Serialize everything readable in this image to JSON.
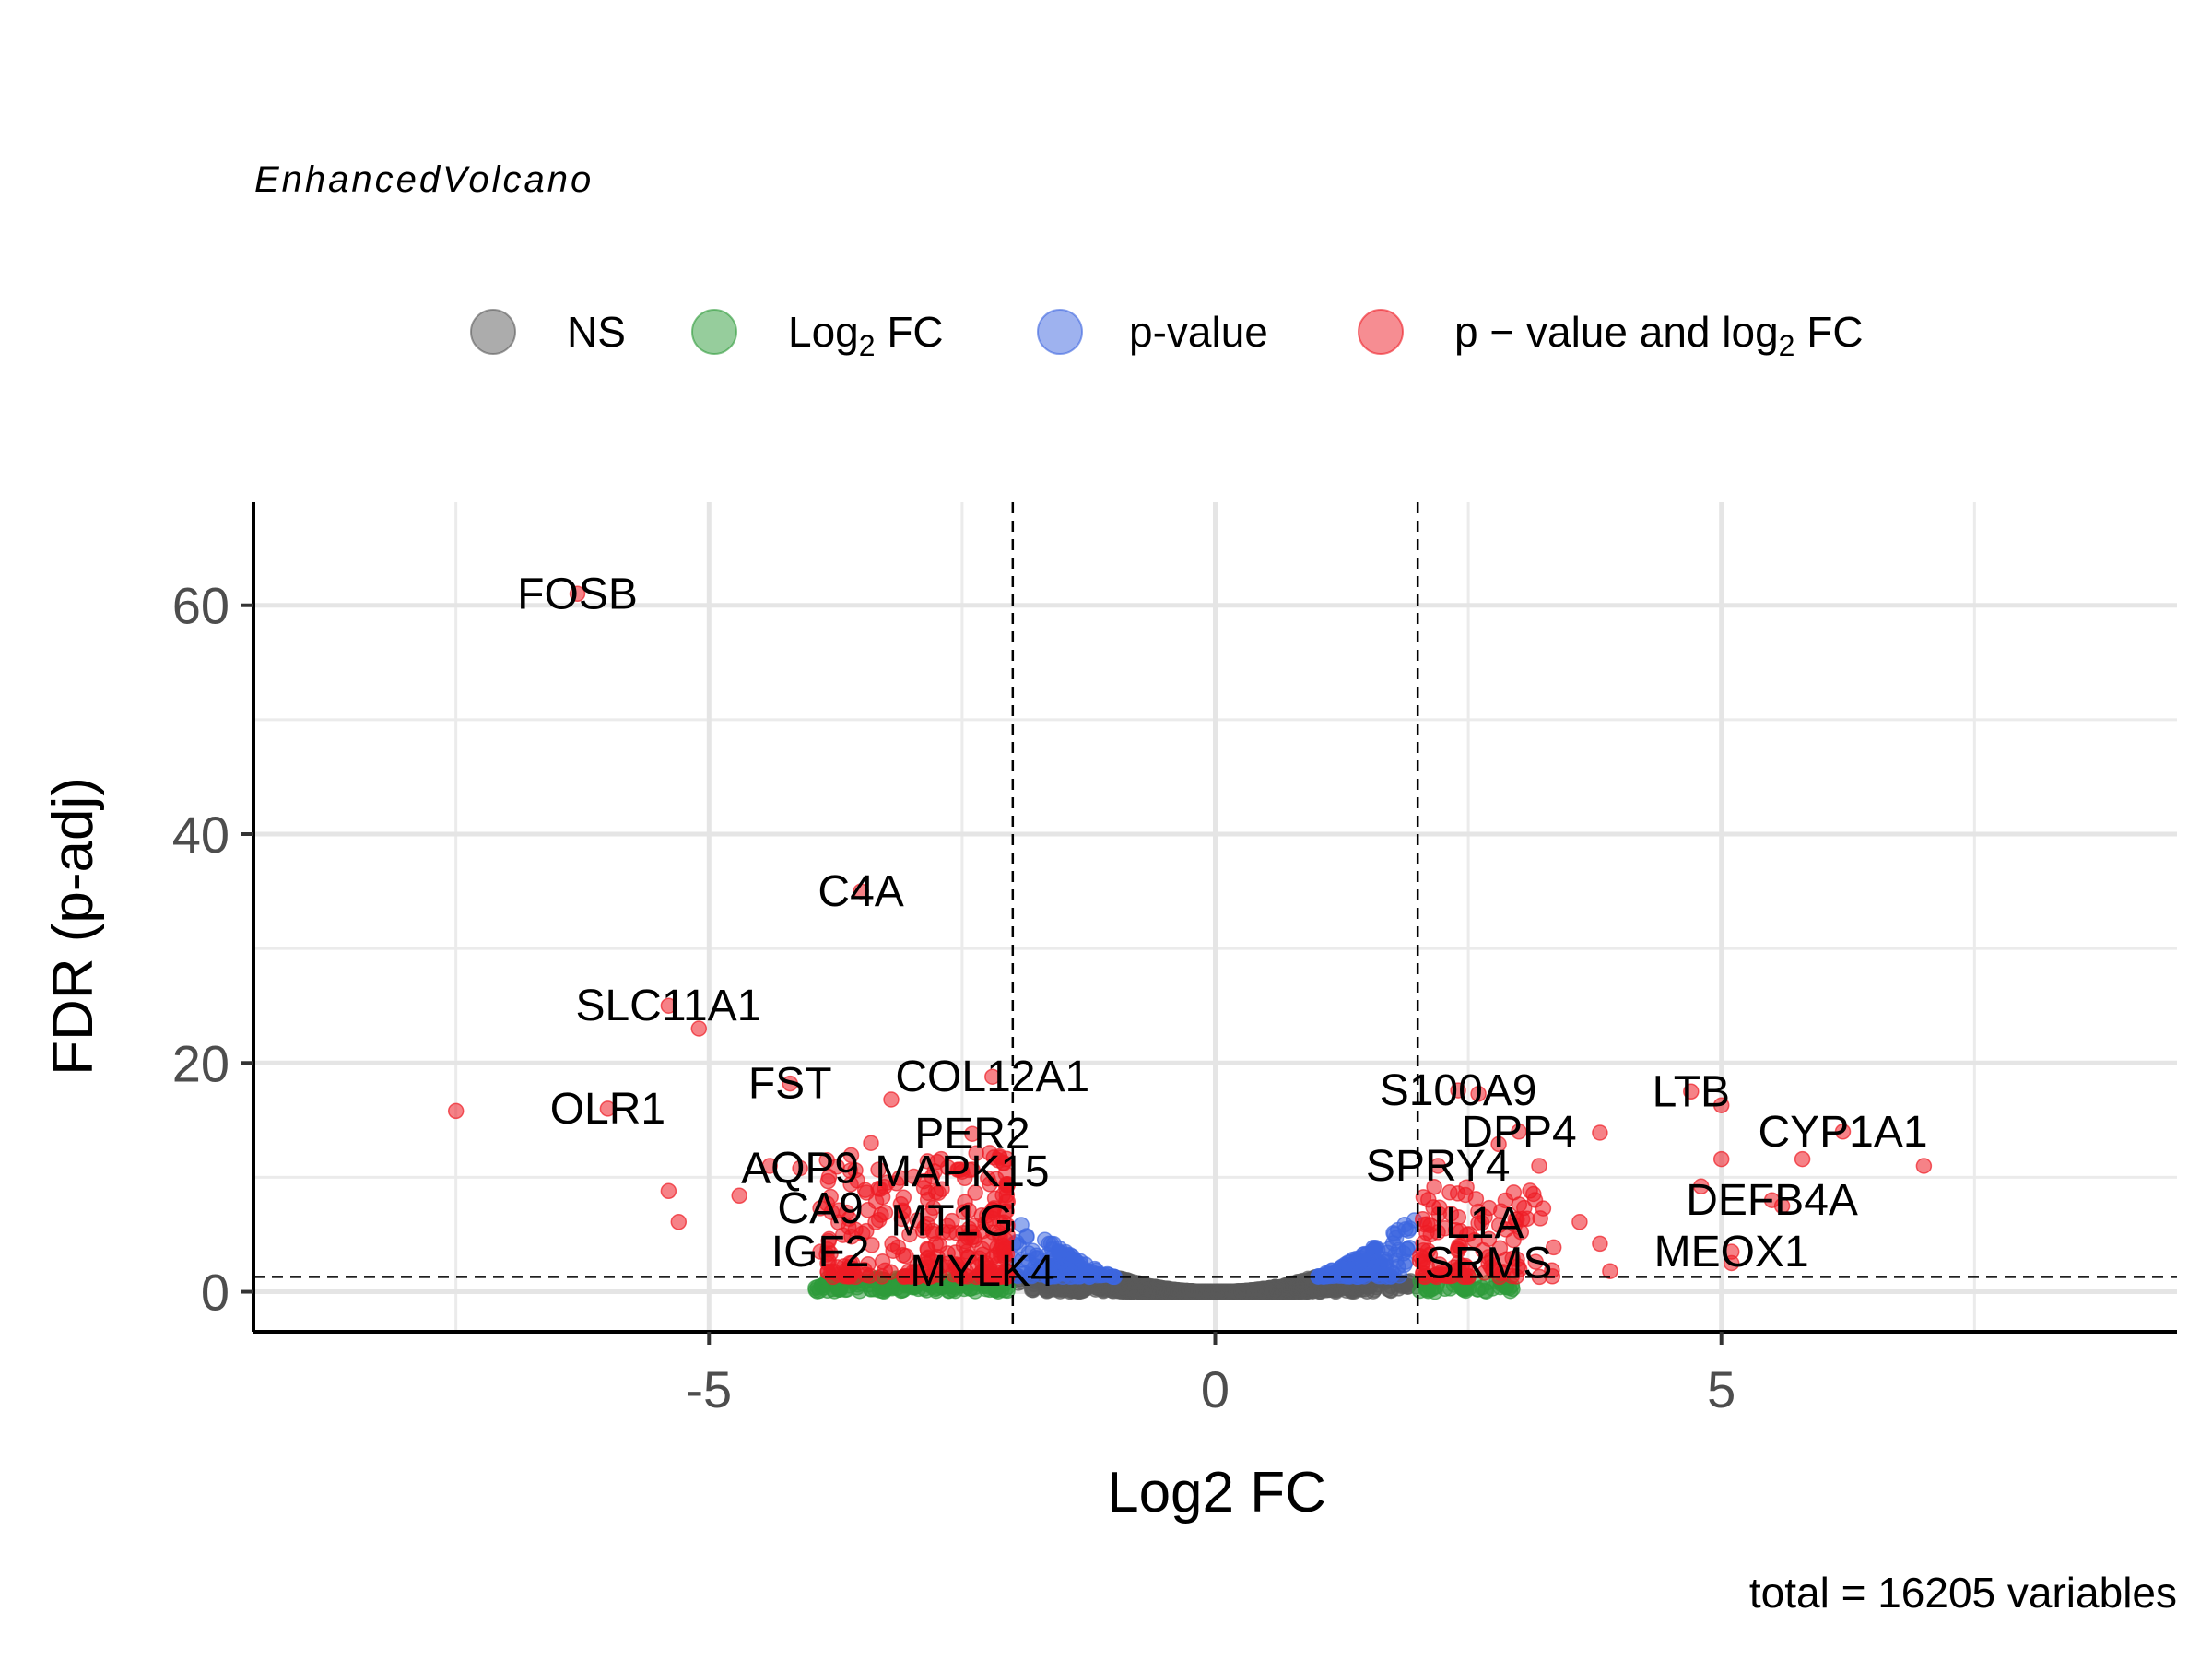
{
  "chart_data": {
    "type": "scatter",
    "subtitle": "EnhancedVolcano",
    "xlabel": "Log2 FC",
    "ylabel": "FDR (p-adj)",
    "caption": "total = 16205 variables",
    "xlim": [
      -9.5,
      9.5
    ],
    "ylim": [
      -3.5,
      69
    ],
    "x_ticks": [
      -5,
      0,
      5
    ],
    "x_tick_labels": [
      "-5",
      "0",
      "5"
    ],
    "y_ticks": [
      0,
      20,
      40,
      60
    ],
    "y_tick_labels": [
      "0",
      "20",
      "40",
      "60"
    ],
    "grid": true,
    "legend_position": "top",
    "cutoffs": {
      "log2fc": 2,
      "fdr": 1.3
    },
    "legend": [
      {
        "key": "ns",
        "label": "NS",
        "color": "#5a5a5a"
      },
      {
        "key": "fc",
        "label_main": "Log",
        "label_sub": "2",
        "label_rest": " FC",
        "color": "#2e9b3a"
      },
      {
        "key": "p",
        "label": "p-value",
        "color": "#3d66e0"
      },
      {
        "key": "both",
        "label_main": "p − value and log",
        "label_sub": "2",
        "label_rest": " FC",
        "color": "#ee1c25"
      }
    ],
    "labeled_genes": [
      {
        "name": "FOSB",
        "x": -6.3,
        "y": 61
      },
      {
        "name": "C4A",
        "x": -3.5,
        "y": 35
      },
      {
        "name": "SLC11A1",
        "x": -5.4,
        "y": 25
      },
      {
        "name": "FST",
        "x": -4.2,
        "y": 18.2
      },
      {
        "name": "COL12A1",
        "x": -2.2,
        "y": 18.8
      },
      {
        "name": "OLR1",
        "x": -6.0,
        "y": 16
      },
      {
        "name": "PER2",
        "x": -2.4,
        "y": 13.8
      },
      {
        "name": "AQP9",
        "x": -4.1,
        "y": 10.8
      },
      {
        "name": "MAPK15",
        "x": -2.5,
        "y": 10.5
      },
      {
        "name": "CA9",
        "x": -3.9,
        "y": 7.3
      },
      {
        "name": "MT1G",
        "x": -2.6,
        "y": 6.2
      },
      {
        "name": "IGF2",
        "x": -3.9,
        "y": 3.5
      },
      {
        "name": "MYLK4",
        "x": -2.3,
        "y": 1.8
      },
      {
        "name": "S100A9",
        "x": 2.4,
        "y": 17.6
      },
      {
        "name": "LTB",
        "x": 4.7,
        "y": 17.5
      },
      {
        "name": "DPP4",
        "x": 3.0,
        "y": 14
      },
      {
        "name": "CYP1A1",
        "x": 6.2,
        "y": 14
      },
      {
        "name": "SPRY4",
        "x": 2.2,
        "y": 11
      },
      {
        "name": "DEFB4A",
        "x": 5.5,
        "y": 8
      },
      {
        "name": "IL1A",
        "x": 2.6,
        "y": 6
      },
      {
        "name": "MEOX1",
        "x": 5.1,
        "y": 3.5
      },
      {
        "name": "SRMS",
        "x": 2.7,
        "y": 2.5
      }
    ],
    "extra_significant": [
      {
        "x": -7.5,
        "y": 15.8
      },
      {
        "x": -5.4,
        "y": 8.8
      },
      {
        "x": -5.3,
        "y": 6.1
      },
      {
        "x": -4.7,
        "y": 8.4
      },
      {
        "x": -4.4,
        "y": 11
      },
      {
        "x": -3.4,
        "y": 13
      },
      {
        "x": -3.6,
        "y": 9.4
      },
      {
        "x": -3.2,
        "y": 16.8
      },
      {
        "x": -5.1,
        "y": 23
      },
      {
        "x": 3.2,
        "y": 11
      },
      {
        "x": 3.8,
        "y": 13.9
      },
      {
        "x": 3.6,
        "y": 6.1
      },
      {
        "x": 5.0,
        "y": 16.3
      },
      {
        "x": 5.0,
        "y": 11.6
      },
      {
        "x": 5.8,
        "y": 11.6
      },
      {
        "x": 7.0,
        "y": 11
      },
      {
        "x": 5.6,
        "y": 7.5
      },
      {
        "x": 4.8,
        "y": 9.2
      },
      {
        "x": 3.8,
        "y": 4.2
      },
      {
        "x": 3.9,
        "y": 1.8
      },
      {
        "x": 5.1,
        "y": 2.5
      },
      {
        "x": 2.8,
        "y": 12.9
      },
      {
        "x": 2.6,
        "y": 17.3
      }
    ]
  }
}
